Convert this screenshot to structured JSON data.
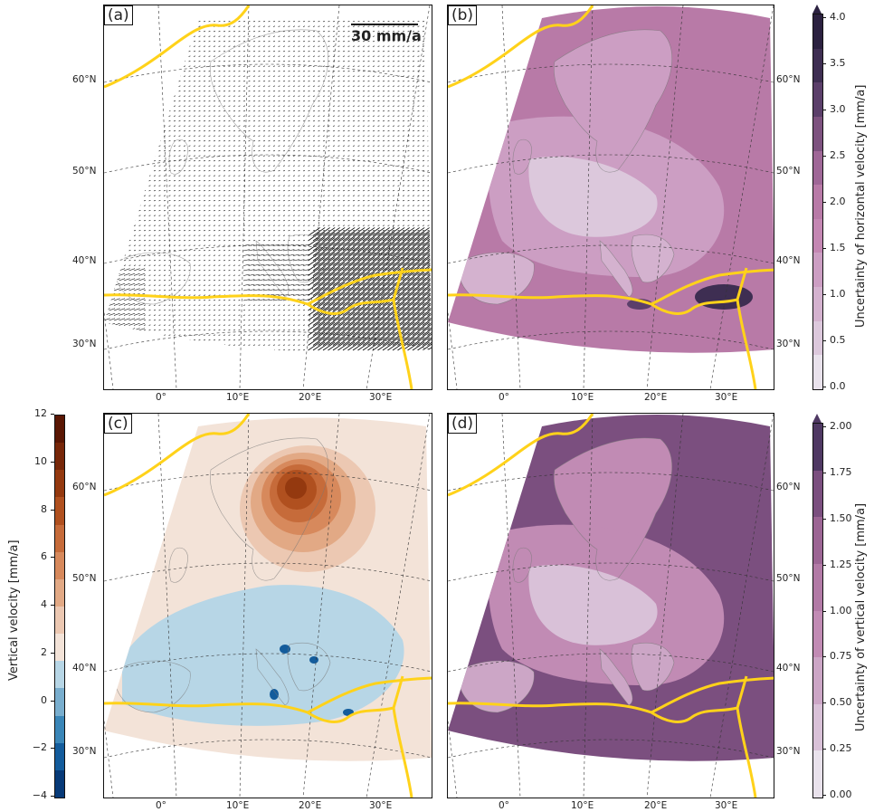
{
  "panels": {
    "a": {
      "label": "(a)",
      "scale_label": "30 mm/a"
    },
    "b": {
      "label": "(b)"
    },
    "c": {
      "label": "(c)"
    },
    "d": {
      "label": "(d)"
    }
  },
  "map_axes": {
    "lon_labels": [
      "0°",
      "10°E",
      "20°E",
      "30°E"
    ],
    "lat_labels": [
      "60°N",
      "50°N",
      "40°N",
      "30°N"
    ]
  },
  "colorbars": {
    "horizontal_uncertainty": {
      "label": "Uncertainty of horizontal velocity [mm/a]",
      "ticks": [
        "4.0",
        "3.5",
        "3.0",
        "2.5",
        "2.0",
        "1.5",
        "1.0",
        "0.5",
        "0.0"
      ],
      "range": [
        0,
        4
      ],
      "extend": "max",
      "colors": [
        "#e9e2ec",
        "#dcc8dc",
        "#d4b2cf",
        "#cc9ec3",
        "#c487b3",
        "#b87aa7",
        "#9f6797",
        "#7d527f",
        "#5b3f6a",
        "#3e2e52",
        "#2b2140"
      ]
    },
    "vertical_velocity": {
      "label": "Vertical velocity [mm/a]",
      "ticks": [
        "12",
        "10",
        "8",
        "6",
        "4",
        "2",
        "0",
        "−2",
        "−4"
      ],
      "range": [
        -4,
        12
      ],
      "colors_negative": [
        "#073a78",
        "#135c9c",
        "#3a86b8",
        "#79aece",
        "#b7d6e6"
      ],
      "colors_positive": [
        "#f3e3d8",
        "#ecc8b2",
        "#e2a985",
        "#d7895c",
        "#c66b3a",
        "#b0501f",
        "#94390f",
        "#772709",
        "#5a1704"
      ]
    },
    "vertical_uncertainty": {
      "label": "Uncertainty of vertical velocity [mm/a]",
      "ticks": [
        "2.00",
        "1.75",
        "1.50",
        "1.25",
        "1.00",
        "0.75",
        "0.50",
        "0.25",
        "0.00"
      ],
      "range": [
        0,
        2
      ],
      "extend": "max",
      "colors": [
        "#e9e2ec",
        "#d9c1d8",
        "#cca6c6",
        "#c18bb4",
        "#b27aa6",
        "#9c6594",
        "#7b4f7f",
        "#4f3863"
      ]
    }
  },
  "boundary_color": "#ffd21a"
}
